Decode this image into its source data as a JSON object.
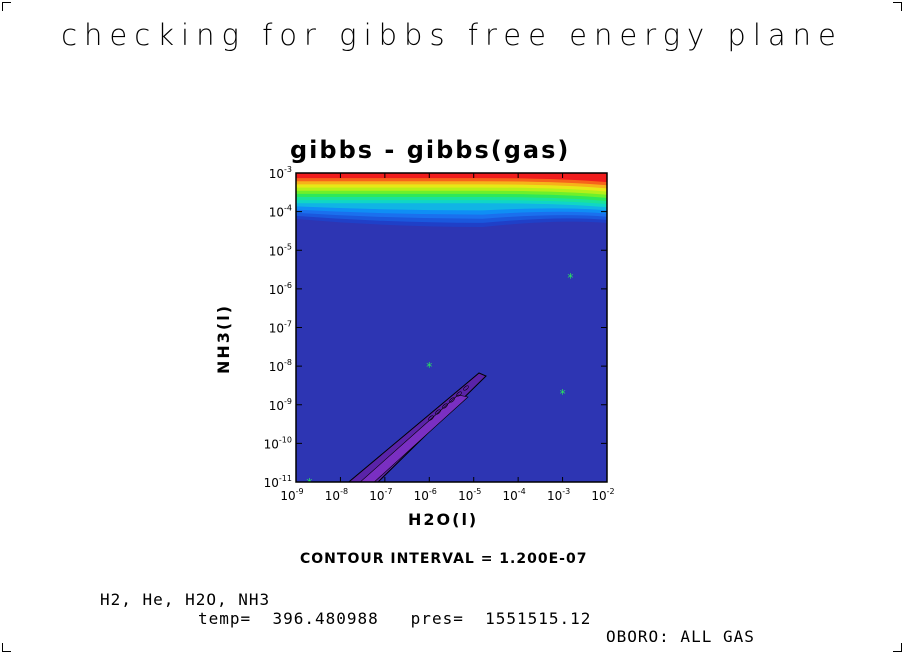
{
  "page": {
    "title": "checking for gibbs free energy plane",
    "contour_note": "CONTOUR INTERVAL = 1.200E-07",
    "species": "H2, He, H2O, NH3",
    "temp_label": "temp=",
    "temp_value": "396.480988",
    "pres_label": "pres=",
    "pres_value": "1551515.12",
    "footer": "OBORO: ALL GAS"
  },
  "chart_data": {
    "type": "heatmap",
    "title": "gibbs - gibbs(gas)",
    "xlabel": "H2O(l)",
    "ylabel": "NH3(l)",
    "xscale": "log",
    "yscale": "log",
    "xlim": [
      1e-09,
      0.01
    ],
    "ylim": [
      1e-11,
      0.001
    ],
    "x_ticks": [
      {
        "base": "10",
        "exp": "-9"
      },
      {
        "base": "10",
        "exp": "-8"
      },
      {
        "base": "10",
        "exp": "-7"
      },
      {
        "base": "10",
        "exp": "-6"
      },
      {
        "base": "10",
        "exp": "-5"
      },
      {
        "base": "10",
        "exp": "-4"
      },
      {
        "base": "10",
        "exp": "-3"
      },
      {
        "base": "10",
        "exp": "-2"
      }
    ],
    "y_ticks": [
      {
        "base": "10",
        "exp": "-11"
      },
      {
        "base": "10",
        "exp": "-10"
      },
      {
        "base": "10",
        "exp": "-9"
      },
      {
        "base": "10",
        "exp": "-8"
      },
      {
        "base": "10",
        "exp": "-7"
      },
      {
        "base": "10",
        "exp": "-6"
      },
      {
        "base": "10",
        "exp": "-5"
      },
      {
        "base": "10",
        "exp": "-4"
      },
      {
        "base": "10",
        "exp": "-3"
      }
    ],
    "background_color": "#2d35b3",
    "band_colors": [
      "#2d35b3",
      "#1f40c8",
      "#1a58dd",
      "#1a70ee",
      "#0f8ef5",
      "#10b4e5",
      "#10d6c6",
      "#1ae39a",
      "#2ee85a",
      "#6ff02a",
      "#b6f01a",
      "#e7e817",
      "#f7b21a",
      "#f7641a",
      "#f01d1d"
    ],
    "trough_colors": {
      "fill": "#5a23a8",
      "inner": "#7a2fc2",
      "outline": "#000000"
    },
    "markers_color": "#29e85c",
    "markers": [
      {
        "x": 2e-09,
        "y": 1e-11
      },
      {
        "x": 1e-06,
        "y": 1e-08
      },
      {
        "x": 0.001,
        "y": 2e-09
      },
      {
        "x": 0.0015,
        "y": 2e-06
      }
    ]
  }
}
